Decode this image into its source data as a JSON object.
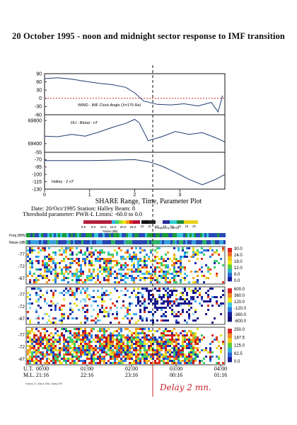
{
  "title": "20 October 1995 - noon and midnight sector response to IMF transition",
  "chart_data": [
    {
      "type": "line",
      "label": "WIND - IMF Clock Angle (X=175 Re)",
      "yticks": [
        "90",
        "60",
        "30",
        "0",
        "-30",
        "-60"
      ],
      "ylim": [
        -60,
        90
      ],
      "reference_line": 0,
      "x": [
        0.0,
        0.3,
        0.6,
        0.9,
        1.2,
        1.5,
        1.8,
        2.0,
        2.2,
        2.5,
        2.8,
        3.1,
        3.4,
        3.7,
        3.85,
        3.95
      ],
      "y": [
        72,
        75,
        70,
        62,
        55,
        50,
        40,
        20,
        -10,
        -22,
        -24,
        -20,
        -28,
        -15,
        -50,
        10
      ]
    },
    {
      "type": "line",
      "label": "DU - Btotal - nT",
      "yticks": [
        "69800",
        "69400"
      ],
      "ylim": [
        69250,
        69900
      ],
      "x": [
        0.0,
        0.3,
        0.6,
        0.9,
        1.2,
        1.5,
        1.8,
        2.0,
        2.1,
        2.3,
        2.6,
        2.9,
        3.2,
        3.5,
        3.8,
        4.0
      ],
      "y": [
        69530,
        69520,
        69560,
        69530,
        69600,
        69680,
        69750,
        69820,
        69760,
        69450,
        69520,
        69610,
        69560,
        69590,
        69500,
        69430
      ]
    },
    {
      "type": "line",
      "label": "Halley - Z nT",
      "yticks": [
        "-55",
        "-70",
        "-85",
        "-100",
        "-115",
        "-130"
      ],
      "ylim": [
        -130,
        -55
      ],
      "xticks": [
        "0",
        "1",
        "2",
        "3"
      ],
      "x": [
        0.0,
        0.5,
        1.0,
        1.5,
        2.0,
        2.3,
        2.6,
        2.9,
        3.2,
        3.5,
        3.8,
        4.0
      ],
      "y": [
        -72,
        -72,
        -72,
        -71,
        -70,
        -74,
        -83,
        -96,
        -110,
        -121,
        -110,
        -100
      ]
    },
    {
      "type": "heatmap",
      "header": {
        "title": "SHARE Range, Time, Parameter Plot",
        "line2": "Date: 20/Oct/1995 Station: Halley Beam: 8",
        "line3": "Threshold parameter: PWR-L   Limits: -60.0 to    0.0",
        "noise_scale": [
          "0.5",
          "5.0",
          "10.0",
          "15.0",
          "20.0",
          "25.0"
        ],
        "noise_label": "Noise (dB)",
        "freq_scale": [
          "10",
          "11",
          "12",
          "13",
          "14",
          "15",
          "16",
          "20"
        ],
        "freq_label": "Frequency (MHz)",
        "freq_row_label": "Freq (MHz)",
        "noise_row_label": "Noise (dB)"
      },
      "panels": [
        {
          "ylabels": [
            "-77",
            "-72",
            "-67"
          ],
          "scale": [
            "30.0",
            "24.0",
            "18.0",
            "12.0",
            "6.0",
            "0.0"
          ]
        },
        {
          "ylabels": [
            "-77",
            "-72",
            "-67"
          ],
          "scale": [
            "600.0",
            "360.0",
            "120.0",
            "-120.0",
            "-360.0",
            "-600.0"
          ]
        },
        {
          "ylabels": [
            "-77",
            "-72",
            "-67"
          ],
          "scale": [
            "250.0",
            "187.5",
            "125.0",
            "62.5",
            "0.0"
          ]
        }
      ],
      "ut_label": "U.T.",
      "ml_label": "M.L.",
      "ut_ticks": [
        "00:00",
        "01:00",
        "02:00",
        "03:00",
        "04:00"
      ],
      "ml_ticks": [
        "21:16",
        "22:16",
        "23:16",
        "00:16",
        "01:16"
      ],
      "footer": "Version 2.0, March 1994, Halley SHF"
    }
  ],
  "annotation": "Delay 2 mn.",
  "colors": {
    "line": "#1d3d6e",
    "reference": "#cc2a2a",
    "annotation": "#c8232c"
  }
}
